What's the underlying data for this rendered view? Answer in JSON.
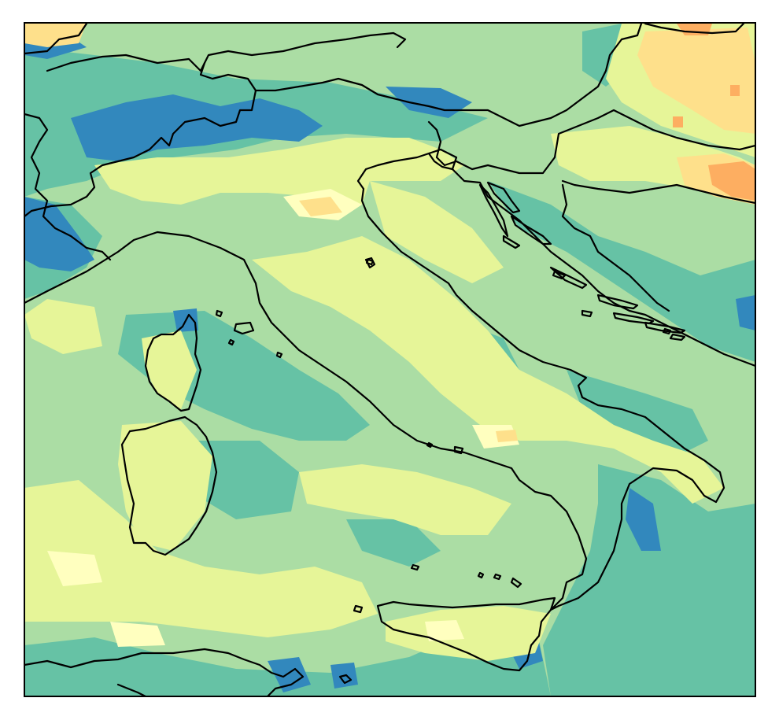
{
  "map": {
    "colormap": "Spectral",
    "palette": {
      "deep_blue": "#3288bd",
      "teal": "#66c2a5",
      "light_green": "#abdda4",
      "pale_yellow": "#e6f598",
      "light_yellow": "#ffffbf",
      "peach": "#fee08b",
      "orange": "#fdae61"
    },
    "background": "#66c2a5",
    "coastline_color": "#000000",
    "axes_visible": false,
    "graticule": false,
    "colorbar": false
  }
}
